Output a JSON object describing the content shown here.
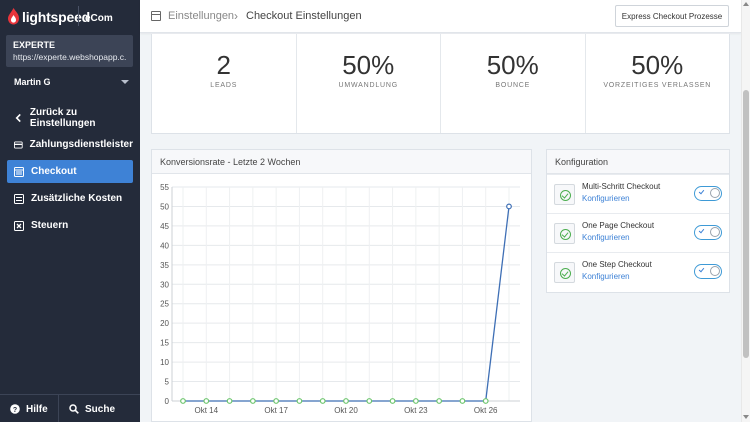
{
  "brand": {
    "name": "lightspeed",
    "product": "eCom"
  },
  "shop": {
    "name": "EXPERTE",
    "url": "https://experte.webshopapp.c..."
  },
  "user": {
    "name": "Martin G"
  },
  "nav": [
    {
      "label": "Zurück zu Einstellungen",
      "icon": "chevron-left-icon"
    },
    {
      "label": "Zahlungsdienstleister",
      "icon": "credit-card-icon"
    },
    {
      "label": "Checkout",
      "icon": "checkout-icon",
      "active": true
    },
    {
      "label": "Zusätzliche Kosten",
      "icon": "plus-box-icon"
    },
    {
      "label": "Steuern",
      "icon": "tax-icon"
    }
  ],
  "footer": {
    "help": "Hilfe",
    "search": "Suche"
  },
  "header": {
    "crumb_parent": "Einstellungen",
    "crumb_sep": "›",
    "crumb_current": "Checkout Einstellungen",
    "button": "Express Checkout Prozesse"
  },
  "stats": [
    {
      "value": "2",
      "label": "LEADS"
    },
    {
      "value": "50%",
      "label": "UMWANDLUNG"
    },
    {
      "value": "50%",
      "label": "BOUNCE"
    },
    {
      "value": "50%",
      "label": "VORZEITIGES VERLASSEN"
    }
  ],
  "chart_card_title": "Konversionsrate - Letzte 2 Wochen",
  "config": {
    "title": "Konfiguration",
    "items": [
      {
        "name": "Multi-Schritt Checkout",
        "link": "Konfigurieren",
        "enabled": true
      },
      {
        "name": "One Page Checkout",
        "link": "Konfigurieren",
        "enabled": true
      },
      {
        "name": "One Step Checkout",
        "link": "Konfigurieren",
        "enabled": true
      }
    ]
  },
  "colors": {
    "accent": "#3e82d6",
    "sidebar": "#242b3a",
    "line": "#3e6fb5",
    "points": "#6cc56c"
  },
  "chart_data": {
    "type": "line",
    "title": "Konversionsrate - Letzte 2 Wochen",
    "x": [
      "Okt 13",
      "Okt 14",
      "Okt 15",
      "Okt 16",
      "Okt 17",
      "Okt 18",
      "Okt 19",
      "Okt 20",
      "Okt 21",
      "Okt 22",
      "Okt 23",
      "Okt 24",
      "Okt 25",
      "Okt 26",
      "Okt 27"
    ],
    "xticks": [
      "Okt 14",
      "Okt 17",
      "Okt 20",
      "Okt 23",
      "Okt 26"
    ],
    "series": [
      {
        "values": [
          0,
          0,
          0,
          0,
          0,
          0,
          0,
          0,
          0,
          0,
          0,
          0,
          0,
          0,
          50
        ]
      }
    ],
    "ylim": [
      0,
      55
    ],
    "yticks": [
      0,
      5,
      10,
      15,
      20,
      25,
      30,
      35,
      40,
      45,
      50,
      55
    ],
    "grid": true,
    "xlabel": "",
    "ylabel": ""
  }
}
